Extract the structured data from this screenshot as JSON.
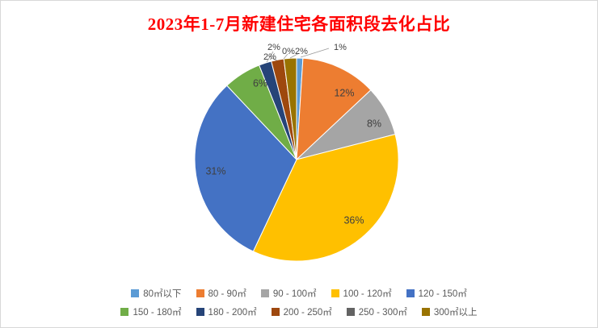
{
  "chart_data": {
    "type": "pie",
    "title": "2023年1-7月新建住宅各面积段去化占比",
    "title_color": "#FF0000",
    "unit": "%",
    "direction": "clockwise",
    "start_angle_deg": 0,
    "legend_position": "bottom",
    "slices": [
      {
        "label": "80㎡以下",
        "value": 1,
        "percent_label": "1%",
        "color": "#5B9BD5"
      },
      {
        "label": "80 - 90㎡",
        "value": 12,
        "percent_label": "12%",
        "color": "#ED7D31"
      },
      {
        "label": "90 - 100㎡",
        "value": 8,
        "percent_label": "8%",
        "color": "#A5A5A5"
      },
      {
        "label": "100 - 120㎡",
        "value": 36,
        "percent_label": "36%",
        "color": "#FFC000"
      },
      {
        "label": "120 - 150㎡",
        "value": 31,
        "percent_label": "31%",
        "color": "#4472C4"
      },
      {
        "label": "150 - 180㎡",
        "value": 6,
        "percent_label": "6%",
        "color": "#70AD47"
      },
      {
        "label": "180 - 200㎡",
        "value": 2,
        "percent_label": "2%",
        "color": "#264478"
      },
      {
        "label": "200 - 250㎡",
        "value": 2,
        "percent_label": "2%",
        "color": "#9E480E"
      },
      {
        "label": "250 - 300㎡",
        "value": 0,
        "percent_label": "0%",
        "color": "#636363"
      },
      {
        "label": "300㎡以上",
        "value": 2,
        "percent_label": "2%",
        "color": "#997300"
      }
    ]
  }
}
